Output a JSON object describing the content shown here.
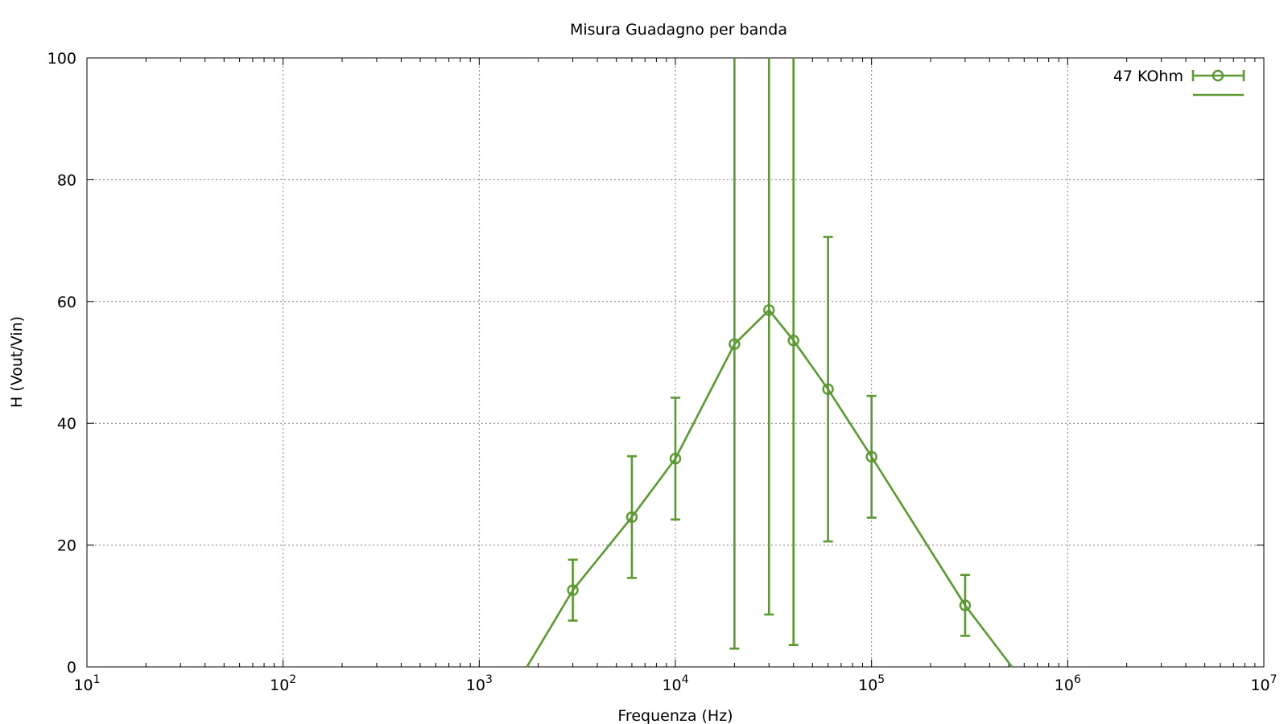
{
  "chart_data": {
    "type": "scatter",
    "title": "Misura Guadagno per banda",
    "xlabel": "Frequenza (Hz)",
    "ylabel": "H (Vout/Vin)",
    "xscale": "log",
    "xlim": [
      10,
      10000000
    ],
    "ylim": [
      0,
      100
    ],
    "x_ticks": [
      {
        "base": "10",
        "exp": "1",
        "value": 10
      },
      {
        "base": "10",
        "exp": "2",
        "value": 100
      },
      {
        "base": "10",
        "exp": "3",
        "value": 1000
      },
      {
        "base": "10",
        "exp": "4",
        "value": 10000
      },
      {
        "base": "10",
        "exp": "5",
        "value": 100000
      },
      {
        "base": "10",
        "exp": "6",
        "value": 1000000
      },
      {
        "base": "10",
        "exp": "7",
        "value": 10000000
      }
    ],
    "y_ticks": [
      "0",
      "20",
      "40",
      "60",
      "80",
      "100"
    ],
    "grid": true,
    "legend_position": "top-right",
    "color": "#5a9a30",
    "series": [
      {
        "name": "47 KOhm",
        "kind": "points-with-errorbars",
        "x": [
          3000,
          6000,
          10000,
          20000,
          30000,
          40000,
          60000,
          100000,
          300000
        ],
        "y": [
          12.6,
          24.6,
          34.2,
          53.0,
          58.6,
          53.6,
          45.6,
          34.5,
          10.1
        ],
        "yerr": [
          5.0,
          10.0,
          10.0,
          50.0,
          50.0,
          50.0,
          25.0,
          10.0,
          5.0
        ]
      },
      {
        "name": "",
        "kind": "fit-line",
        "x": [
          1750,
          3000,
          6000,
          10000,
          20000,
          30000,
          40000,
          60000,
          100000,
          300000,
          520000
        ],
        "y": [
          0,
          12.6,
          24.6,
          34.2,
          53.0,
          58.6,
          53.6,
          45.6,
          34.5,
          10.1,
          0
        ]
      }
    ]
  }
}
